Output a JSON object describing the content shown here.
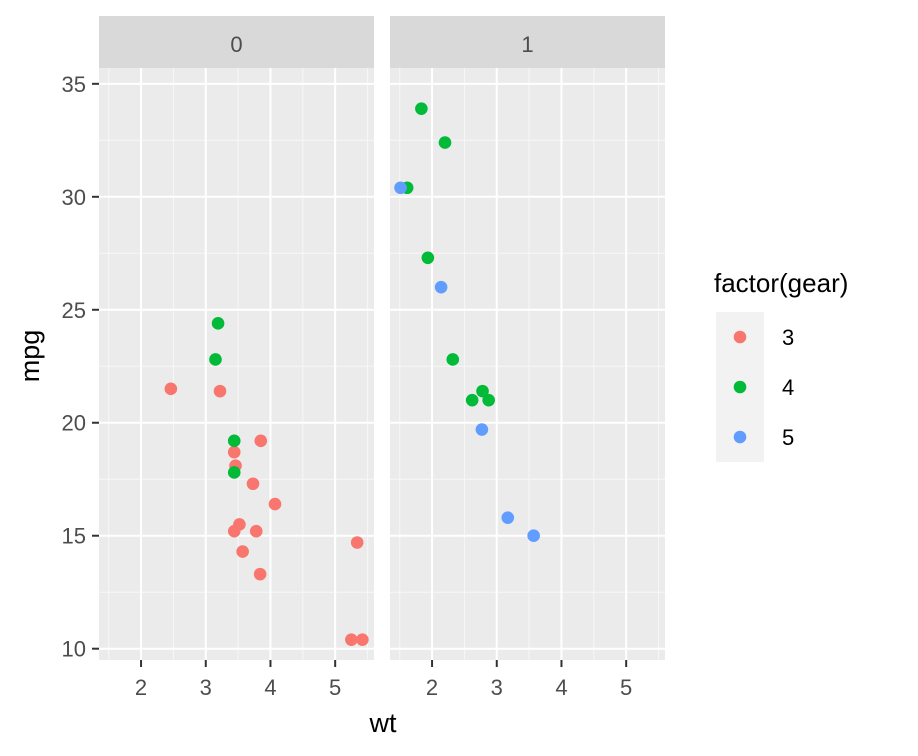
{
  "chart_data": {
    "type": "scatter",
    "xlabel": "wt",
    "ylabel": "mpg",
    "xlim": [
      1.35,
      5.6
    ],
    "ylim": [
      9.5,
      35.7
    ],
    "x_ticks": [
      2,
      3,
      4,
      5
    ],
    "y_ticks": [
      10,
      15,
      20,
      25,
      30,
      35
    ],
    "x_tick_labels": [
      "2",
      "3",
      "4",
      "5"
    ],
    "y_tick_labels": [
      "10",
      "15",
      "20",
      "25",
      "30",
      "35"
    ],
    "grid": true,
    "facet_var": "am",
    "facets": [
      {
        "label": "0",
        "points": [
          {
            "x": 2.46,
            "y": 21.5,
            "gear": "3"
          },
          {
            "x": 3.22,
            "y": 21.4,
            "gear": "3"
          },
          {
            "x": 3.44,
            "y": 18.7,
            "gear": "3"
          },
          {
            "x": 3.46,
            "y": 18.1,
            "gear": "3"
          },
          {
            "x": 3.57,
            "y": 14.3,
            "gear": "3"
          },
          {
            "x": 4.07,
            "y": 16.4,
            "gear": "3"
          },
          {
            "x": 3.73,
            "y": 17.3,
            "gear": "3"
          },
          {
            "x": 3.78,
            "y": 15.2,
            "gear": "3"
          },
          {
            "x": 5.25,
            "y": 10.4,
            "gear": "3"
          },
          {
            "x": 5.42,
            "y": 10.4,
            "gear": "3"
          },
          {
            "x": 5.34,
            "y": 14.7,
            "gear": "3"
          },
          {
            "x": 3.52,
            "y": 15.5,
            "gear": "3"
          },
          {
            "x": 3.44,
            "y": 15.2,
            "gear": "3"
          },
          {
            "x": 3.84,
            "y": 13.3,
            "gear": "3"
          },
          {
            "x": 3.85,
            "y": 19.2,
            "gear": "3"
          },
          {
            "x": 3.19,
            "y": 24.4,
            "gear": "4"
          },
          {
            "x": 3.15,
            "y": 22.8,
            "gear": "4"
          },
          {
            "x": 3.44,
            "y": 19.2,
            "gear": "4"
          },
          {
            "x": 3.44,
            "y": 17.8,
            "gear": "4"
          }
        ]
      },
      {
        "label": "1",
        "points": [
          {
            "x": 2.62,
            "y": 21.0,
            "gear": "4"
          },
          {
            "x": 2.875,
            "y": 21.0,
            "gear": "4"
          },
          {
            "x": 2.32,
            "y": 22.8,
            "gear": "4"
          },
          {
            "x": 2.2,
            "y": 32.4,
            "gear": "4"
          },
          {
            "x": 1.615,
            "y": 30.4,
            "gear": "4"
          },
          {
            "x": 1.835,
            "y": 33.9,
            "gear": "4"
          },
          {
            "x": 1.935,
            "y": 27.3,
            "gear": "4"
          },
          {
            "x": 2.78,
            "y": 21.4,
            "gear": "4"
          },
          {
            "x": 2.14,
            "y": 26.0,
            "gear": "5"
          },
          {
            "x": 1.513,
            "y": 30.4,
            "gear": "5"
          },
          {
            "x": 3.17,
            "y": 15.8,
            "gear": "5"
          },
          {
            "x": 2.77,
            "y": 19.7,
            "gear": "5"
          },
          {
            "x": 3.57,
            "y": 15.0,
            "gear": "5"
          }
        ]
      }
    ],
    "legend": {
      "title": "factor(gear)",
      "position": "right",
      "items": [
        {
          "label": "3",
          "color": "#F8766D"
        },
        {
          "label": "4",
          "color": "#00BA38"
        },
        {
          "label": "5",
          "color": "#619CFF"
        }
      ]
    },
    "colors": {
      "panel_background": "#EBEBEB",
      "grid_major": "#FFFFFF",
      "strip_background": "#D9D9D9",
      "tick_text": "#4D4D4D"
    }
  }
}
